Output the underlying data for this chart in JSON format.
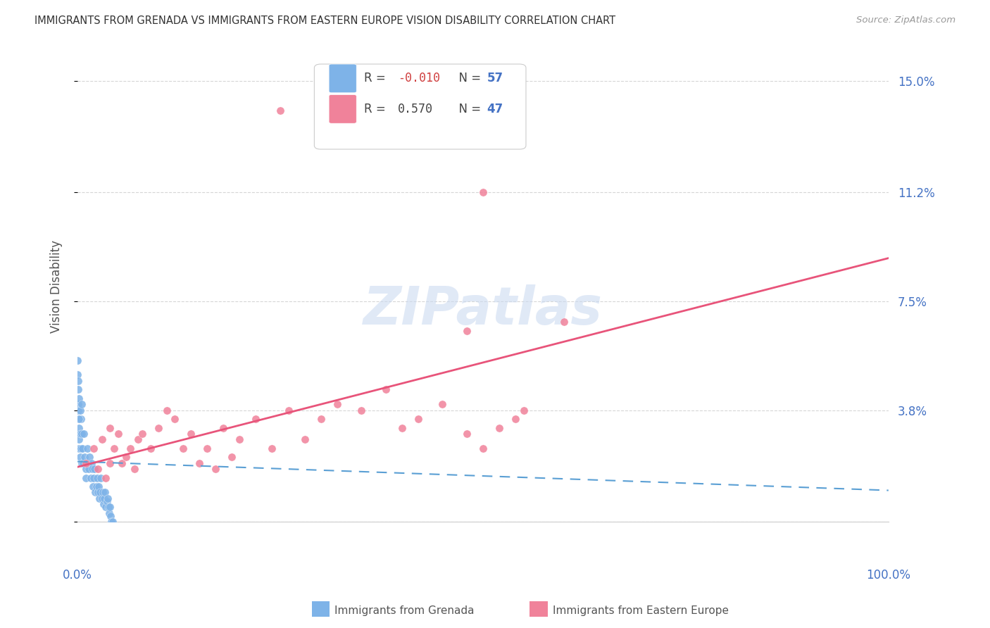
{
  "title": "IMMIGRANTS FROM GRENADA VS IMMIGRANTS FROM EASTERN EUROPE VISION DISABILITY CORRELATION CHART",
  "source": "Source: ZipAtlas.com",
  "ylabel": "Vision Disability",
  "yticks": [
    0.0,
    0.038,
    0.075,
    0.112,
    0.15
  ],
  "ytick_labels": [
    "",
    "3.8%",
    "7.5%",
    "11.2%",
    "15.0%"
  ],
  "xlim": [
    0.0,
    1.0
  ],
  "ylim": [
    0.0,
    0.16
  ],
  "series1_label": "Immigrants from Grenada",
  "series2_label": "Immigrants from Eastern Europe",
  "blue_color": "#7EB3E8",
  "pink_color": "#F0829A",
  "blue_line_color": "#5A9FD4",
  "pink_line_color": "#E8547A",
  "blue_r": -0.01,
  "pink_r": 0.57,
  "blue_n": 57,
  "pink_n": 47,
  "watermark": "ZIPatlas",
  "background_color": "#FFFFFF",
  "grid_color": "#CCCCCC",
  "blue_dots_x": [
    0.0,
    0.0,
    0.001,
    0.001,
    0.001,
    0.002,
    0.002,
    0.002,
    0.002,
    0.003,
    0.003,
    0.003,
    0.004,
    0.004,
    0.005,
    0.005,
    0.005,
    0.006,
    0.007,
    0.008,
    0.009,
    0.01,
    0.01,
    0.012,
    0.013,
    0.014,
    0.015,
    0.016,
    0.017,
    0.018,
    0.019,
    0.02,
    0.021,
    0.022,
    0.023,
    0.024,
    0.025,
    0.026,
    0.027,
    0.028,
    0.029,
    0.03,
    0.031,
    0.032,
    0.033,
    0.034,
    0.035,
    0.036,
    0.037,
    0.038,
    0.039,
    0.04,
    0.041,
    0.042,
    0.043,
    0.001,
    0.002
  ],
  "blue_dots_y": [
    0.055,
    0.05,
    0.048,
    0.04,
    0.038,
    0.042,
    0.032,
    0.028,
    0.025,
    0.038,
    0.03,
    0.022,
    0.035,
    0.025,
    0.04,
    0.03,
    0.02,
    0.025,
    0.02,
    0.03,
    0.022,
    0.018,
    0.015,
    0.025,
    0.02,
    0.018,
    0.022,
    0.015,
    0.02,
    0.018,
    0.012,
    0.015,
    0.018,
    0.01,
    0.012,
    0.015,
    0.01,
    0.012,
    0.008,
    0.01,
    0.015,
    0.008,
    0.01,
    0.006,
    0.008,
    0.01,
    0.005,
    0.007,
    0.008,
    0.005,
    0.003,
    0.005,
    0.002,
    0.0,
    0.0,
    0.045,
    0.035
  ],
  "pink_dots_x": [
    0.01,
    0.02,
    0.025,
    0.03,
    0.035,
    0.04,
    0.04,
    0.045,
    0.05,
    0.055,
    0.06,
    0.065,
    0.07,
    0.075,
    0.08,
    0.09,
    0.1,
    0.11,
    0.12,
    0.13,
    0.14,
    0.15,
    0.16,
    0.17,
    0.18,
    0.19,
    0.2,
    0.22,
    0.24,
    0.26,
    0.28,
    0.3,
    0.32,
    0.35,
    0.38,
    0.4,
    0.42,
    0.45,
    0.48,
    0.5,
    0.52,
    0.54,
    0.55,
    0.25,
    0.48,
    0.6,
    0.5
  ],
  "pink_dots_y": [
    0.02,
    0.025,
    0.018,
    0.028,
    0.015,
    0.032,
    0.02,
    0.025,
    0.03,
    0.02,
    0.022,
    0.025,
    0.018,
    0.028,
    0.03,
    0.025,
    0.032,
    0.038,
    0.035,
    0.025,
    0.03,
    0.02,
    0.025,
    0.018,
    0.032,
    0.022,
    0.028,
    0.035,
    0.025,
    0.038,
    0.028,
    0.035,
    0.04,
    0.038,
    0.045,
    0.032,
    0.035,
    0.04,
    0.03,
    0.025,
    0.032,
    0.035,
    0.038,
    0.14,
    0.065,
    0.068,
    0.112
  ]
}
